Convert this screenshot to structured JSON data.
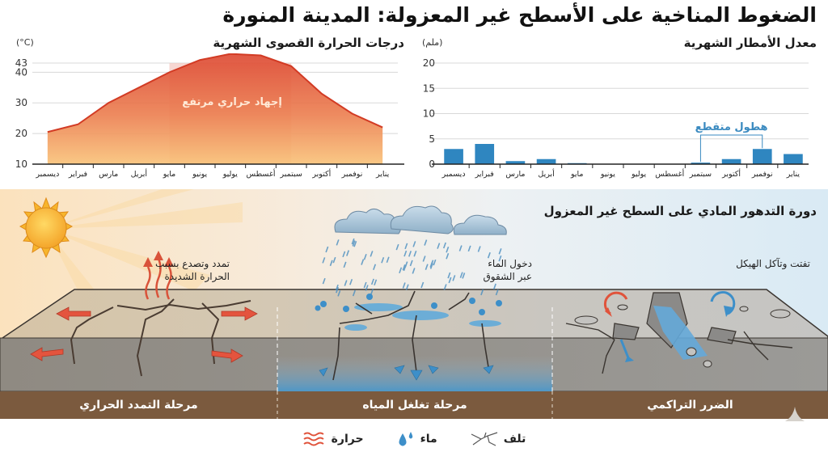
{
  "title": "الضغوط المناخية على الأسطح غير المعزولة: المدينة المنورة",
  "temperature_panel": {
    "title": "درجات الحرارة القصوى الشهرية",
    "unit": "(°C)",
    "annotation": "إجهاد حراري مرتفع",
    "yticks": [
      "43",
      "40",
      "30",
      "20",
      "10"
    ]
  },
  "rainfall_panel": {
    "title": "معدل الأمطار الشهرية",
    "unit": "(ملم)",
    "annotation": "هطول متقطع",
    "yticks": [
      "20",
      "15",
      "10",
      "5",
      "0"
    ]
  },
  "months_ltr": [
    "ديسمبر",
    "فبراير",
    "مارس",
    "أبريل",
    "مايو",
    "يونيو",
    "يوليو",
    "أغسطس",
    "سبتمبر",
    "أكتوبر",
    "نوفمبر",
    "يناير"
  ],
  "cycle": {
    "title": "دورة التدهور المادي على السطح غير المعزول",
    "notes": {
      "heat_line1": "تمدد وتصدع بسبب",
      "heat_line2": "الحرارة الشديدة",
      "water_line1": "دخول الماء",
      "water_line2": "عبر الشقوق",
      "damage": "تفتت وتآكل الهيكل"
    },
    "stages": {
      "thermal": "مرحلة التمدد الحراري",
      "water": "مرحلة تغلغل المياه",
      "cumulative": "الضرر التراكمي"
    }
  },
  "legend": {
    "heat": "حرارة",
    "water": "ماء",
    "damage": "تلف"
  },
  "colors": {
    "temp_line": "#d9402a",
    "temp_fill_top": "#e0503a",
    "temp_fill_bottom": "#f8c074",
    "highlight_band": "#f4c9c3",
    "rain_bar": "#2f86c0",
    "annotation_blue": "#3a8ac0",
    "stage_band": "#7d5c40"
  },
  "chart_data": [
    {
      "type": "area",
      "title": "درجات الحرارة القصوى الشهرية",
      "xlabel": "",
      "ylabel": "(°C)",
      "categories": [
        "ديسمبر",
        "فبراير",
        "مارس",
        "أبريل",
        "مايو",
        "يونيو",
        "يوليو",
        "أغسطس",
        "سبتمبر",
        "أكتوبر",
        "نوفمبر",
        "يناير"
      ],
      "values": [
        20.5,
        23,
        30,
        35,
        40,
        44,
        46,
        45.5,
        42,
        33,
        26.5,
        22
      ],
      "ylim": [
        10,
        43
      ],
      "yticks": [
        10,
        20,
        30,
        40,
        43
      ],
      "grid": true,
      "annotations": [
        {
          "text": "إجهاد حراري مرتفع",
          "x_range": [
            "مايو",
            "سبتمبر"
          ]
        }
      ]
    },
    {
      "type": "bar",
      "title": "معدل الأمطار الشهرية",
      "xlabel": "",
      "ylabel": "(ملم)",
      "categories": [
        "ديسمبر",
        "فبراير",
        "مارس",
        "أبريل",
        "مايو",
        "يونيو",
        "يوليو",
        "أغسطس",
        "سبتمبر",
        "أكتوبر",
        "نوفمبر",
        "يناير"
      ],
      "values": [
        3,
        4,
        0.6,
        1,
        0.2,
        0.05,
        0,
        0,
        0.3,
        1,
        3,
        2
      ],
      "ylim": [
        0,
        20
      ],
      "yticks": [
        0,
        5,
        10,
        15,
        20
      ],
      "grid": true,
      "annotations": [
        {
          "text": "هطول متقطع",
          "x_range": [
            "سبتمبر",
            "نوفمبر"
          ]
        }
      ]
    }
  ]
}
